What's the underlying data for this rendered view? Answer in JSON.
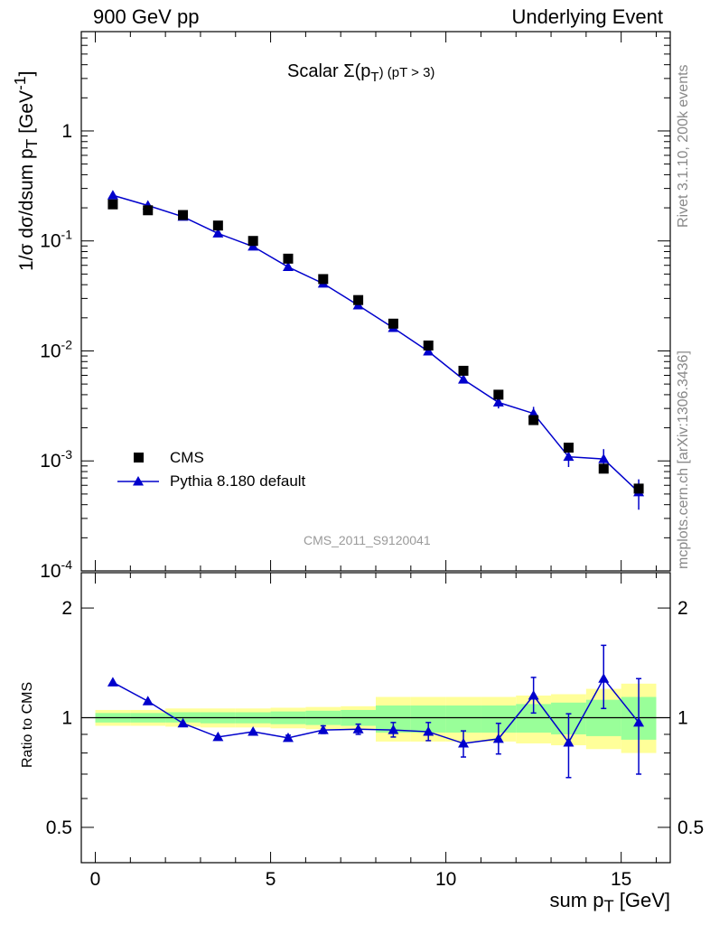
{
  "header": {
    "left_label": "900 GeV pp",
    "right_label": "Underlying Event"
  },
  "side": {
    "version": "Rivet 3.1.10,  200k events",
    "source": "mcplots.cern.ch [arXiv:1306.3436]"
  },
  "main_plot": {
    "title_main": "Scalar Σ(p",
    "title_sub": "T",
    "title_tail": ") (pT >  3)",
    "ylabel": "1/σ dσ/dsum p",
    "ylabel_sub": "T",
    "ylabel_unit": " [GeV",
    "ylabel_sup": "-1",
    "ylabel_close": "]",
    "watermark": "CMS_2011_S9120041",
    "legend": [
      {
        "label": "CMS"
      },
      {
        "label": "Pythia 8.180 default"
      }
    ]
  },
  "ratio_plot": {
    "ylabel": "Ratio to CMS"
  },
  "xaxis": {
    "label": "sum p",
    "label_sub": "T",
    "label_unit": " [GeV]"
  },
  "chart_data": [
    {
      "type": "scatter",
      "panel": "main",
      "xlabel": "sum pT [GeV]",
      "ylabel": "1/σ dσ/dsum pT [GeV^-1]",
      "yscale": "log",
      "xlim": [
        -0.4,
        16.4
      ],
      "ylim": [
        0.0001,
        8
      ],
      "xticks": [
        0,
        5,
        10,
        15
      ],
      "yticks": [
        {
          "value": 0.0001,
          "label": "10^-4"
        },
        {
          "value": 0.001,
          "label": "10^-3"
        },
        {
          "value": 0.01,
          "label": "10^-2"
        },
        {
          "value": 0.1,
          "label": "10^-1"
        },
        {
          "value": 1,
          "label": "1"
        }
      ],
      "legend_position": "bottom-left",
      "x": [
        0.5,
        1.5,
        2.5,
        3.5,
        4.5,
        5.5,
        6.5,
        7.5,
        8.5,
        9.5,
        10.5,
        11.5,
        12.5,
        13.5,
        14.5,
        15.5
      ],
      "series": [
        {
          "name": "CMS",
          "marker": "square",
          "color": "#000000",
          "values": [
            0.215,
            0.19,
            0.172,
            0.138,
            0.1,
            0.069,
            0.045,
            0.029,
            0.0177,
            0.0112,
            0.0066,
            0.004,
            0.00235,
            0.00132,
            0.00085,
            0.00056
          ]
        },
        {
          "name": "Pythia 8.180 default",
          "marker": "triangle",
          "color": "#0000cc",
          "values": [
            0.26,
            0.21,
            0.166,
            0.117,
            0.089,
            0.058,
            0.041,
            0.026,
            0.0162,
            0.0099,
            0.0055,
            0.0034,
            0.0027,
            0.00109,
            0.00104,
            0.00052
          ],
          "errors": [
            0,
            0,
            0,
            0,
            0,
            0,
            0,
            0,
            0,
            0,
            0,
            0.0004,
            0.0004,
            0.00021,
            0.00024,
            0.00016
          ]
        }
      ]
    },
    {
      "type": "scatter",
      "panel": "ratio",
      "ylabel": "Ratio to CMS",
      "yscale": "log",
      "ylim": [
        0.4,
        2.5
      ],
      "yticks": [
        {
          "value": 0.5,
          "label": "0.5"
        },
        {
          "value": 1,
          "label": "1"
        },
        {
          "value": 2,
          "label": "2"
        }
      ],
      "x": [
        0.5,
        1.5,
        2.5,
        3.5,
        4.5,
        5.5,
        6.5,
        7.5,
        8.5,
        9.5,
        10.5,
        11.5,
        12.5,
        13.5,
        14.5,
        15.5
      ],
      "band_edges": [
        0,
        1,
        2,
        3,
        4,
        5,
        6,
        7,
        8,
        9,
        10,
        11,
        12,
        13,
        14,
        15,
        16
      ],
      "band_yellow": [
        [
          0.95,
          1.05
        ],
        [
          0.95,
          1.05
        ],
        [
          0.945,
          1.06
        ],
        [
          0.94,
          1.06
        ],
        [
          0.94,
          1.06
        ],
        [
          0.935,
          1.065
        ],
        [
          0.93,
          1.07
        ],
        [
          0.925,
          1.075
        ],
        [
          0.86,
          1.14
        ],
        [
          0.86,
          1.14
        ],
        [
          0.86,
          1.14
        ],
        [
          0.86,
          1.14
        ],
        [
          0.85,
          1.15
        ],
        [
          0.84,
          1.16
        ],
        [
          0.82,
          1.2
        ],
        [
          0.8,
          1.24
        ]
      ],
      "band_green": [
        [
          0.97,
          1.03
        ],
        [
          0.97,
          1.03
        ],
        [
          0.97,
          1.035
        ],
        [
          0.965,
          1.035
        ],
        [
          0.965,
          1.035
        ],
        [
          0.96,
          1.04
        ],
        [
          0.955,
          1.045
        ],
        [
          0.95,
          1.05
        ],
        [
          0.91,
          1.08
        ],
        [
          0.91,
          1.08
        ],
        [
          0.91,
          1.08
        ],
        [
          0.91,
          1.08
        ],
        [
          0.91,
          1.09
        ],
        [
          0.9,
          1.1
        ],
        [
          0.89,
          1.12
        ],
        [
          0.87,
          1.14
        ]
      ],
      "series": [
        {
          "name": "Pythia 8.180 default",
          "marker": "triangle",
          "color": "#0000cc",
          "values": [
            1.25,
            1.11,
            0.965,
            0.885,
            0.915,
            0.88,
            0.925,
            0.93,
            0.925,
            0.915,
            0.85,
            0.875,
            1.15,
            0.855,
            1.28,
            0.97
          ],
          "err_low": [
            0,
            0,
            0,
            0,
            0,
            0.015,
            0.02,
            0.03,
            0.04,
            0.05,
            0.07,
            0.08,
            0.12,
            0.17,
            0.22,
            0.27
          ],
          "err_high": [
            0,
            0,
            0,
            0,
            0,
            0.015,
            0.025,
            0.03,
            0.045,
            0.055,
            0.07,
            0.09,
            0.14,
            0.17,
            0.3,
            0.31
          ]
        }
      ]
    }
  ]
}
